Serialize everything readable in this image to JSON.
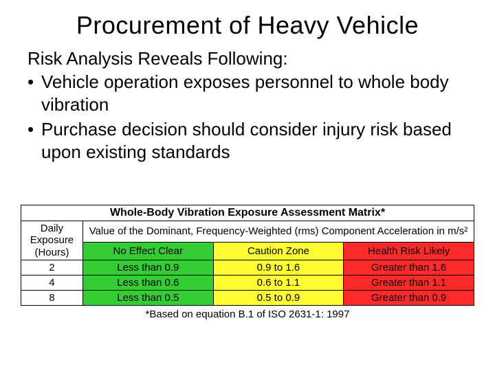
{
  "title": "Procurement of Heavy Vehicle",
  "subtitle": "Risk Analysis Reveals Following:",
  "bullets": [
    "Vehicle operation exposes personnel to whole body vibration",
    "Purchase decision should consider injury risk based upon existing standards"
  ],
  "matrix": {
    "main_title": "Whole-Body Vibration Exposure Assessment Matrix*",
    "row_header_top": "Daily Exposure (Hours)",
    "col_header_top": "Value of the Dominant, Frequency-Weighted (rms) Component Acceleration in m/s²",
    "zones": {
      "green": {
        "label": "No Effect Clear",
        "bg": "#33cc33"
      },
      "yellow": {
        "label": "Caution Zone",
        "bg": "#ffff33"
      },
      "red": {
        "label": "Health Risk Likely",
        "bg": "#ff2a2a"
      }
    },
    "rows": [
      {
        "hours": "2",
        "green": "Less than 0.9",
        "yellow": "0.9 to 1.6",
        "red": "Greater than 1.6"
      },
      {
        "hours": "4",
        "green": "Less than 0.6",
        "yellow": "0.6 to 1.1",
        "red": "Greater than 1.1"
      },
      {
        "hours": "8",
        "green": "Less than 0.5",
        "yellow": "0.5 to 0.9",
        "red": "Greater than 0.9"
      }
    ],
    "footnote": "*Based on equation B.1 of ISO 2631-1: 1997",
    "border_color": "#000000",
    "font_size_body": 15,
    "font_size_title": 16
  },
  "colors": {
    "background": "#ffffff",
    "text": "#000000"
  },
  "typography": {
    "title_size": 36,
    "subtitle_size": 26,
    "bullet_size": 26,
    "font_family": "Arial"
  }
}
